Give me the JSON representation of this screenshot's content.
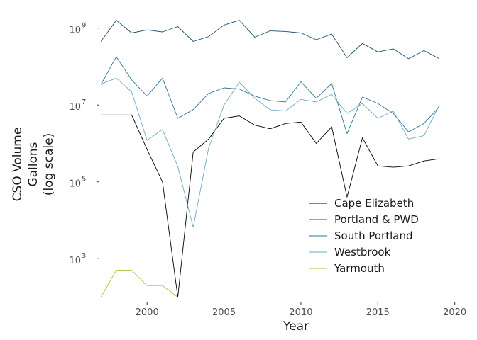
{
  "chart_data": {
    "type": "line",
    "xlabel": "Year",
    "ylabel_lines": [
      "CSO Volume",
      "Gallons",
      "(log scale)"
    ],
    "x_ticks": [
      2000,
      2005,
      2010,
      2015,
      2020
    ],
    "x_tick_labels": [
      "2000",
      "2005",
      "2010",
      "2015",
      "2020"
    ],
    "xlim": [
      1996.9,
      2020.8
    ],
    "y_scale": "log10",
    "y_ticks_exp": [
      3,
      5,
      7,
      9
    ],
    "y_tick_base": "10",
    "ylim_exp": [
      1.88,
      9.4
    ],
    "grid": false,
    "legend_position": "inside bottom-right",
    "series": [
      {
        "name": "Cape Elizabeth",
        "color": "#000000",
        "x": [
          1997,
          1998,
          1999,
          2000,
          2001,
          2002,
          2003,
          2004,
          2005,
          2006,
          2007,
          2008,
          2009,
          2010,
          2011,
          2012,
          2013,
          2014,
          2015,
          2016,
          2017,
          2018,
          2019
        ],
        "y": [
          5500000.0,
          5500000.0,
          5500000.0,
          700000.0,
          100000.0,
          100.0,
          600000.0,
          1300000.0,
          4500000.0,
          5200000.0,
          3000000.0,
          2400000.0,
          3300000.0,
          3600000.0,
          1000000.0,
          2700000.0,
          40000.0,
          1400000.0,
          260000.0,
          240000.0,
          260000.0,
          350000.0,
          400000.0
        ]
      },
      {
        "name": "Portland & PWD",
        "color": "#1d4f6e",
        "x": [
          1997,
          1998,
          1999,
          2000,
          2001,
          2002,
          2003,
          2004,
          2005,
          2006,
          2007,
          2008,
          2009,
          2010,
          2011,
          2012,
          2013,
          2014,
          2015,
          2016,
          2017,
          2018,
          2019
        ],
        "y": [
          450000000.0,
          1600000000.0,
          750000000.0,
          900000000.0,
          800000000.0,
          1100000000.0,
          450000000.0,
          600000000.0,
          1200000000.0,
          1600000000.0,
          580000000.0,
          850000000.0,
          820000000.0,
          750000000.0,
          500000000.0,
          700000000.0,
          170000000.0,
          400000000.0,
          240000000.0,
          290000000.0,
          160000000.0,
          260000000.0,
          160000000.0
        ]
      },
      {
        "name": "South Portland",
        "color": "#2e7696",
        "x": [
          1997,
          1998,
          1999,
          2000,
          2001,
          2002,
          2003,
          2004,
          2005,
          2006,
          2007,
          2008,
          2009,
          2010,
          2011,
          2012,
          2013,
          2014,
          2015,
          2016,
          2017,
          2018,
          2019
        ],
        "y": [
          34000000.0,
          180000000.0,
          45000000.0,
          17000000.0,
          50000000.0,
          4500000.0,
          7600000.0,
          20000000.0,
          28000000.0,
          26000000.0,
          17000000.0,
          13000000.0,
          12000000.0,
          40000000.0,
          15000000.0,
          36000000.0,
          1800000.0,
          16000000.0,
          11000000.0,
          6000000.0,
          2000000.0,
          3300000.0,
          9000000.0
        ]
      },
      {
        "name": "Westbrook",
        "color": "#6fa8c4",
        "x": [
          1997,
          1998,
          1999,
          2000,
          2001,
          2002,
          2003,
          2004,
          2005,
          2006,
          2007,
          2008,
          2009,
          2010,
          2011,
          2012,
          2013,
          2014,
          2015,
          2016,
          2017,
          2018,
          2019
        ],
        "y": [
          35000000.0,
          50000000.0,
          22000000.0,
          1200000.0,
          2300000.0,
          250000.0,
          6600.0,
          760000.0,
          10000000.0,
          39000000.0,
          15000000.0,
          7500000.0,
          7000000.0,
          14000000.0,
          12000000.0,
          19000000.0,
          6000000.0,
          11000000.0,
          4500000.0,
          7000000.0,
          1300000.0,
          1600000.0,
          10000000.0
        ]
      },
      {
        "name": "Yarmouth",
        "color": "#b5b93a",
        "x": [
          1997,
          1998,
          1999,
          2000,
          2001,
          2002
        ],
        "y": [
          100,
          500,
          500,
          200,
          200,
          100
        ]
      }
    ]
  }
}
